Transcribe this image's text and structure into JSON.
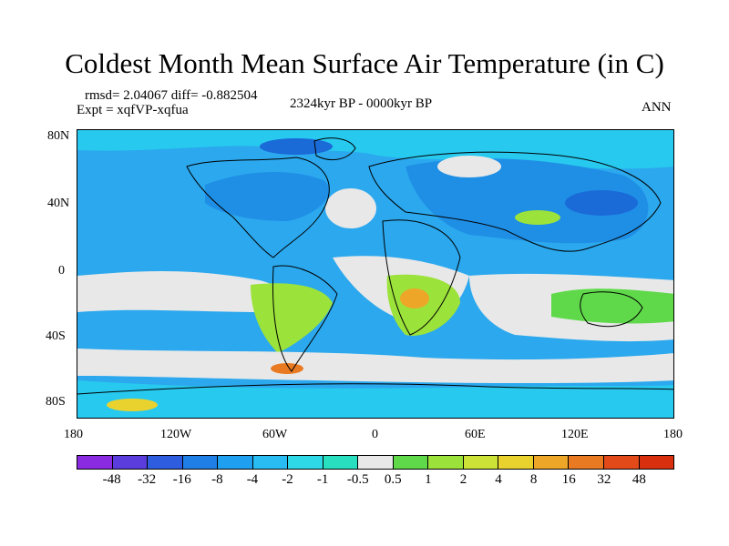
{
  "title": "Coldest Month Mean Surface Air Temperature (in C)",
  "stats": "rmsd= 2.04067 diff= -0.882504",
  "experiment": "Expt = xqfVP-xqfua",
  "period": "2324kyr BP - 0000kyr BP",
  "season": "ANN",
  "y_ticks": [
    "80N",
    "40N",
    "0",
    "40S",
    "80S"
  ],
  "x_ticks": [
    "180",
    "120W",
    "60W",
    "0",
    "60E",
    "120E",
    "180"
  ],
  "colorbar": {
    "labels": [
      "-48",
      "-32",
      "-16",
      "-8",
      "-4",
      "-2",
      "-1",
      "-0.5",
      "0.5",
      "1",
      "2",
      "4",
      "8",
      "16",
      "32",
      "48"
    ],
    "colors": [
      "#8a2be2",
      "#5a3ddc",
      "#2f5de0",
      "#1f7fe6",
      "#1e9ff0",
      "#29bcf2",
      "#2fd8e6",
      "#28e0c0",
      "#e8e8e8",
      "#5fd94a",
      "#9be23a",
      "#cde236",
      "#ead22e",
      "#eea628",
      "#e97a22",
      "#e24a1a",
      "#d8300e"
    ]
  }
}
